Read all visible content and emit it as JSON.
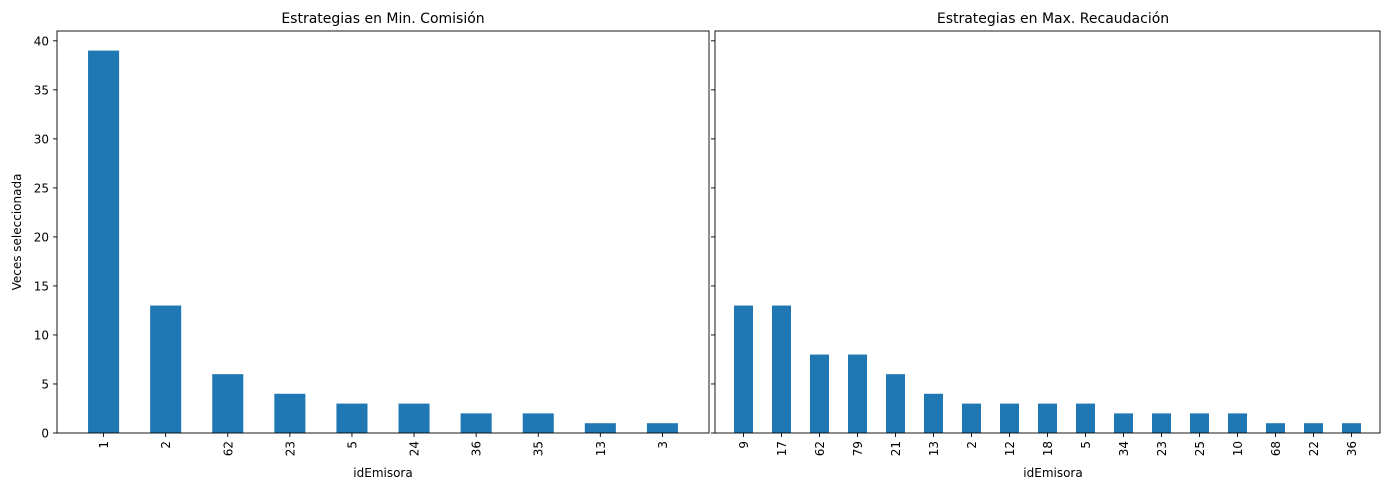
{
  "figure": {
    "shared_ylabel": "Veces seleccionada"
  },
  "chart_data": [
    {
      "type": "bar",
      "title": "Estrategias en Min. Comisión",
      "xlabel": "idEmisora",
      "ylabel": "Veces seleccionada",
      "categories": [
        "1",
        "2",
        "62",
        "23",
        "5",
        "24",
        "36",
        "35",
        "13",
        "3"
      ],
      "values": [
        39,
        13,
        6,
        4,
        3,
        3,
        2,
        2,
        1,
        1
      ],
      "ylim": [
        0,
        41
      ],
      "yticks": [
        0,
        5,
        10,
        15,
        20,
        25,
        30,
        35,
        40
      ],
      "bar_color": "#1f77b4",
      "grid": false,
      "legend": "none"
    },
    {
      "type": "bar",
      "title": "Estrategias en Max. Recaudación",
      "xlabel": "idEmisora",
      "ylabel": "",
      "categories": [
        "9",
        "17",
        "62",
        "79",
        "21",
        "13",
        "2",
        "12",
        "18",
        "5",
        "34",
        "23",
        "25",
        "10",
        "68",
        "22",
        "36"
      ],
      "values": [
        13,
        13,
        8,
        8,
        6,
        4,
        3,
        3,
        3,
        3,
        2,
        2,
        2,
        2,
        1,
        1,
        1
      ],
      "ylim": [
        0,
        41
      ],
      "yticks": [
        0,
        5,
        10,
        15,
        20,
        25,
        30,
        35,
        40
      ],
      "bar_color": "#1f77b4",
      "grid": false,
      "legend": "none"
    }
  ]
}
